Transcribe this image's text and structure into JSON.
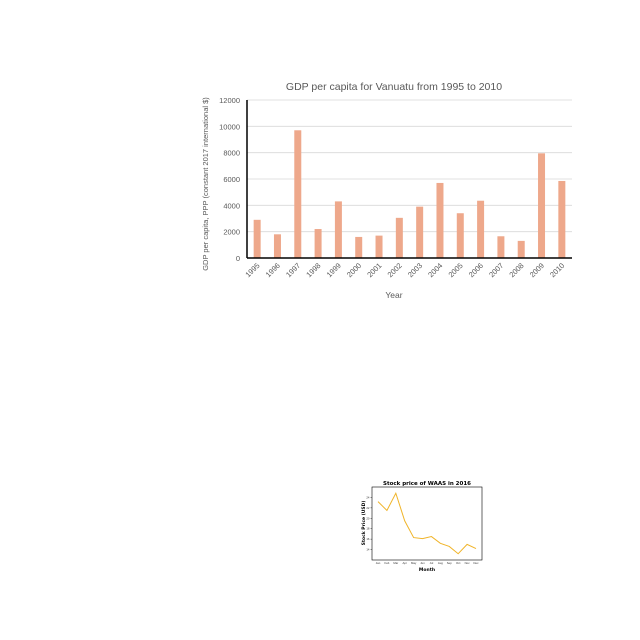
{
  "chart_data": [
    {
      "type": "bar",
      "title": "GDP per capita for Vanuatu from 1995 to 2010",
      "xlabel": "Year",
      "ylabel": "GDP per capita, PPP (constant 2017 international $)",
      "categories": [
        "1995",
        "1996",
        "1997",
        "1998",
        "1999",
        "2000",
        "2001",
        "2002",
        "2003",
        "2004",
        "2005",
        "2006",
        "2007",
        "2008",
        "2009",
        "2010"
      ],
      "values": [
        2900,
        1800,
        9700,
        2200,
        4300,
        1600,
        1700,
        3050,
        3900,
        5700,
        3400,
        4350,
        1650,
        1300,
        7950,
        5850
      ],
      "ylim": [
        0,
        12000
      ],
      "yticks": [
        "0",
        "2000",
        "4000",
        "6000",
        "8000",
        "10000",
        "12000"
      ],
      "grid": true,
      "color": "#eea88b"
    },
    {
      "type": "line",
      "title": "Stock price of WAAS in 2016",
      "xlabel": "Month",
      "ylabel": "Stock Price (USD)",
      "categories": [
        "Jan",
        "Feb",
        "Mar",
        "Apr",
        "May",
        "Jun",
        "Jul",
        "Aug",
        "Sep",
        "Oct",
        "Nov",
        "Dec"
      ],
      "values": [
        23.2,
        21.5,
        24.8,
        19.5,
        16.3,
        16.1,
        16.5,
        15.2,
        14.6,
        13.2,
        15.0,
        14.2
      ],
      "ylim": [
        12,
        26
      ],
      "yticks": [
        "14",
        "16",
        "18",
        "20",
        "22",
        "24"
      ],
      "grid": false,
      "color": "#f0b429"
    }
  ]
}
